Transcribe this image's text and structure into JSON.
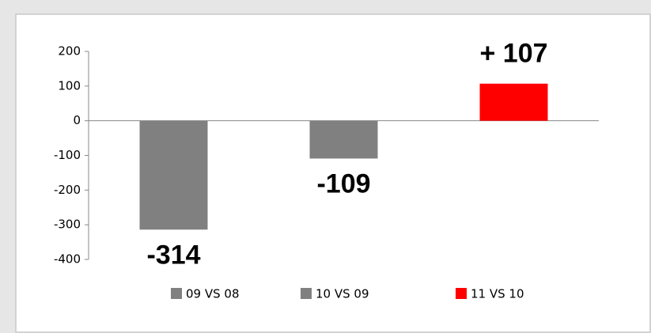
{
  "chart_data": {
    "type": "bar",
    "series": [
      {
        "name": "09 VS 08",
        "color": "#808080",
        "values": [
          -314
        ],
        "value_labels": [
          "-314"
        ]
      },
      {
        "name": "10 VS 09",
        "color": "#808080",
        "values": [
          -109
        ],
        "value_labels": [
          "-109"
        ]
      },
      {
        "name": "11 VS 10",
        "color": "#ff0000",
        "values": [
          107
        ],
        "value_labels": [
          "+ 107"
        ]
      }
    ],
    "ylim": [
      -400,
      200
    ],
    "yticks": [
      -400,
      -300,
      -200,
      -100,
      0,
      100,
      200
    ],
    "grid": false,
    "legend": "bottom"
  }
}
